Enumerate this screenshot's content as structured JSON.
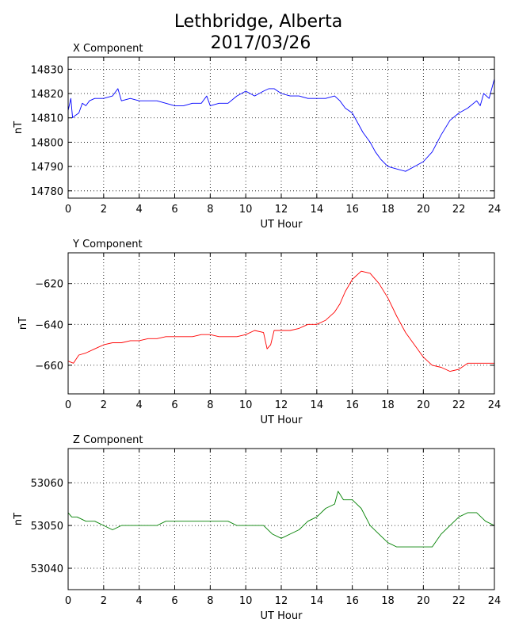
{
  "figure": {
    "title_line1": "Lethbridge, Alberta",
    "title_line2": "2017/03/26"
  },
  "chart_data": [
    {
      "type": "line",
      "panel_title": "X Component",
      "xlabel": "UT Hour",
      "ylabel": "nT",
      "xlim": [
        0,
        24
      ],
      "ylim": [
        14777,
        14835
      ],
      "xticks": [
        0,
        2,
        4,
        6,
        8,
        10,
        12,
        14,
        16,
        18,
        20,
        22,
        24
      ],
      "yticks": [
        14780,
        14790,
        14800,
        14810,
        14820,
        14830
      ],
      "grid": true,
      "color": "#0000ff",
      "x": [
        0,
        0.15,
        0.25,
        0.4,
        0.6,
        0.8,
        1,
        1.2,
        1.5,
        2,
        2.5,
        2.8,
        3,
        3.5,
        4,
        4.5,
        5,
        5.5,
        6,
        6.5,
        7,
        7.5,
        7.8,
        8,
        8.5,
        9,
        9.5,
        10,
        10.5,
        11,
        11.3,
        11.6,
        12,
        12.5,
        13,
        13.5,
        14,
        14.5,
        15,
        15.3,
        15.6,
        16,
        16.3,
        16.6,
        17,
        17.3,
        17.6,
        18,
        18.5,
        19,
        19.5,
        20,
        20.5,
        21,
        21.5,
        22,
        22.5,
        23,
        23.2,
        23.4,
        23.7,
        24
      ],
      "y": [
        14813,
        14818,
        14810,
        14811,
        14812,
        14816,
        14815,
        14817,
        14818,
        14818,
        14819,
        14822,
        14817,
        14818,
        14817,
        14817,
        14817,
        14816,
        14815,
        14815,
        14816,
        14816,
        14819,
        14815,
        14816,
        14816,
        14819,
        14821,
        14819,
        14821,
        14822,
        14822,
        14820,
        14819,
        14819,
        14818,
        14818,
        14818,
        14819,
        14817,
        14814,
        14812,
        14808,
        14804,
        14800,
        14796,
        14793,
        14790,
        14789,
        14788,
        14790,
        14792,
        14796,
        14803,
        14809,
        14812,
        14814,
        14817,
        14815,
        14820,
        14818,
        14826
      ]
    },
    {
      "type": "line",
      "panel_title": "Y Component",
      "xlabel": "UT Hour",
      "ylabel": "nT",
      "xlim": [
        0,
        24
      ],
      "ylim": [
        -674,
        -605
      ],
      "xticks": [
        0,
        2,
        4,
        6,
        8,
        10,
        12,
        14,
        16,
        18,
        20,
        22,
        24
      ],
      "yticks": [
        -620,
        -640,
        -660
      ],
      "grid": true,
      "color": "#ff0000",
      "x": [
        0,
        0.3,
        0.6,
        1,
        1.5,
        2,
        2.5,
        3,
        3.5,
        4,
        4.5,
        5,
        5.5,
        6,
        6.5,
        7,
        7.5,
        8,
        8.5,
        9,
        9.5,
        10,
        10.5,
        11,
        11.2,
        11.4,
        11.6,
        12,
        12.5,
        13,
        13.5,
        14,
        14.5,
        15,
        15.3,
        15.6,
        16,
        16.5,
        17,
        17.5,
        18,
        18.5,
        19,
        19.5,
        20,
        20.5,
        21,
        21.5,
        22,
        22.5,
        23,
        23.5,
        24
      ],
      "y": [
        -658,
        -659,
        -655,
        -654,
        -652,
        -650,
        -649,
        -649,
        -648,
        -648,
        -647,
        -647,
        -646,
        -646,
        -646,
        -646,
        -645,
        -645,
        -646,
        -646,
        -646,
        -645,
        -643,
        -644,
        -652,
        -650,
        -643,
        -643,
        -643,
        -642,
        -640,
        -640,
        -638,
        -634,
        -630,
        -624,
        -618,
        -614,
        -615,
        -620,
        -627,
        -636,
        -644,
        -650,
        -656,
        -660,
        -661,
        -663,
        -662,
        -659,
        -659,
        -659,
        -659
      ]
    },
    {
      "type": "line",
      "panel_title": "Z Component",
      "xlabel": "UT Hour",
      "ylabel": "nT",
      "xlim": [
        0,
        24
      ],
      "ylim": [
        53035,
        53068
      ],
      "xticks": [
        0,
        2,
        4,
        6,
        8,
        10,
        12,
        14,
        16,
        18,
        20,
        22,
        24
      ],
      "yticks": [
        53040,
        53050,
        53060
      ],
      "grid": true,
      "color": "#008000",
      "x": [
        0,
        0.2,
        0.5,
        1,
        1.5,
        2,
        2.5,
        3,
        3.5,
        4,
        4.5,
        5,
        5.5,
        6,
        6.5,
        7,
        7.5,
        8,
        8.5,
        9,
        9.5,
        10,
        10.5,
        11,
        11.5,
        12,
        12.5,
        13,
        13.5,
        14,
        14.5,
        15,
        15.2,
        15.5,
        16,
        16.5,
        17,
        17.5,
        18,
        18.5,
        19,
        19.5,
        20,
        20.5,
        21,
        21.5,
        22,
        22.5,
        23,
        23.5,
        24
      ],
      "y": [
        53053,
        53052,
        53052,
        53051,
        53051,
        53050,
        53049,
        53050,
        53050,
        53050,
        53050,
        53050,
        53051,
        53051,
        53051,
        53051,
        53051,
        53051,
        53051,
        53051,
        53050,
        53050,
        53050,
        53050,
        53048,
        53047,
        53048,
        53049,
        53051,
        53052,
        53054,
        53055,
        53058,
        53056,
        53056,
        53054,
        53050,
        53048,
        53046,
        53045,
        53045,
        53045,
        53045,
        53045,
        53048,
        53050,
        53052,
        53053,
        53053,
        53051,
        53050
      ]
    }
  ]
}
